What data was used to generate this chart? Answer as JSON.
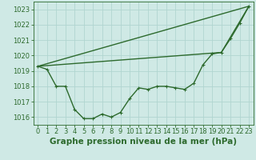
{
  "background_color": "#cfe9e5",
  "grid_color": "#b0d5d0",
  "line_color": "#2d6a2d",
  "title": "Graphe pression niveau de la mer (hPa)",
  "ylim": [
    1015.5,
    1023.5
  ],
  "xlim": [
    -0.5,
    23.5
  ],
  "yticks": [
    1016,
    1017,
    1018,
    1019,
    1020,
    1021,
    1022,
    1023
  ],
  "xticks": [
    0,
    1,
    2,
    3,
    4,
    5,
    6,
    7,
    8,
    9,
    10,
    11,
    12,
    13,
    14,
    15,
    16,
    17,
    18,
    19,
    20,
    21,
    22,
    23
  ],
  "line1": [
    1019.3,
    1019.1,
    1018.0,
    1018.0,
    1016.5,
    1015.9,
    1015.9,
    1016.2,
    1016.0,
    1016.3,
    1017.2,
    1017.9,
    1017.8,
    1018.0,
    1018.0,
    1017.9,
    1017.8,
    1018.2,
    1019.4,
    1020.1,
    1020.2,
    1021.1,
    1022.1,
    1023.2
  ],
  "line2_x": [
    0,
    23
  ],
  "line2_y": [
    1019.3,
    1023.2
  ],
  "line3_x": [
    0,
    20,
    23
  ],
  "line3_y": [
    1019.3,
    1020.2,
    1023.2
  ],
  "marker_size": 3.5,
  "line_width": 1.0,
  "title_fontsize": 7.5,
  "tick_fontsize": 6.0
}
